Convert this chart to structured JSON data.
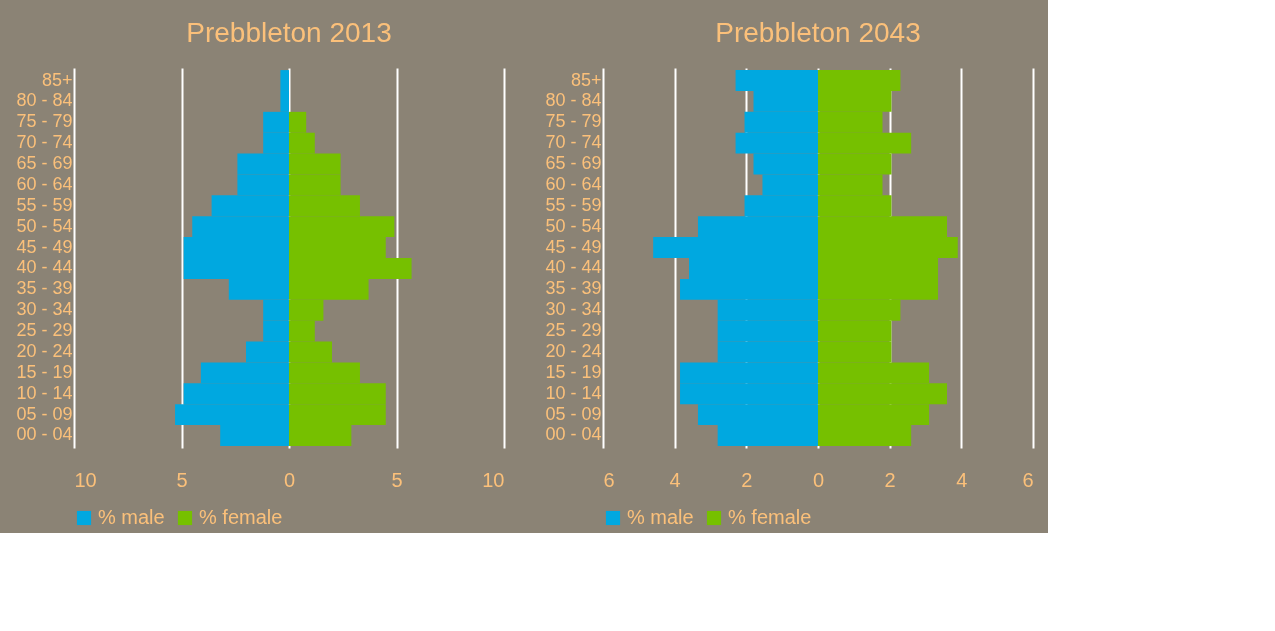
{
  "chart_data": [
    {
      "type": "bar",
      "orientation": "horizontal",
      "stacked": true,
      "title": "Prebbleton 2013",
      "categories": [
        "85+",
        "80 - 84",
        "75 - 79",
        "70 - 74",
        "65 - 69",
        "60 - 64",
        "55 - 59",
        "50 - 54",
        "45 - 49",
        "40 - 44",
        "35 - 39",
        "30 - 34",
        "25 - 29",
        "20 - 24",
        "15 - 19",
        "10 - 14",
        "05 - 09",
        "00 - 04"
      ],
      "series": [
        {
          "name": "% male",
          "color": "#00a8e0",
          "values": [
            -0.4,
            -0.4,
            -1.2,
            -1.2,
            -2.4,
            -2.4,
            -3.6,
            -4.5,
            -4.9,
            -4.9,
            -2.8,
            -1.2,
            -1.2,
            -2.0,
            -4.1,
            -4.9,
            -5.3,
            -3.2
          ]
        },
        {
          "name": "% female",
          "color": "#76c000",
          "values": [
            0,
            0,
            0.8,
            1.2,
            2.4,
            2.4,
            3.3,
            4.9,
            4.5,
            5.7,
            3.7,
            1.6,
            1.2,
            2.0,
            3.3,
            4.5,
            4.5,
            2.9
          ]
        }
      ],
      "xlim": [
        -10,
        10
      ],
      "xticks": [
        {
          "value": -10,
          "label": "10"
        },
        {
          "value": -5,
          "label": "5"
        },
        0,
        5,
        10
      ],
      "grid": "x",
      "legend": "bottom"
    },
    {
      "type": "bar",
      "orientation": "horizontal",
      "stacked": true,
      "title": "Prebbleton 2043",
      "categories": [
        "85+",
        "80 - 84",
        "75 - 79",
        "70 - 74",
        "65 - 69",
        "60 - 64",
        "55 - 59",
        "50 - 54",
        "45 - 49",
        "40 - 44",
        "35 - 39",
        "30 - 34",
        "25 - 29",
        "20 - 24",
        "15 - 19",
        "10 - 14",
        "05 - 09",
        "00 - 04"
      ],
      "series": [
        {
          "name": "% male",
          "color": "#00a8e0",
          "values": [
            -2.3,
            -1.8,
            -2.05,
            -2.3,
            -1.8,
            -1.55,
            -2.05,
            -3.35,
            -4.6,
            -3.6,
            -3.85,
            -2.8,
            -2.8,
            -2.8,
            -3.85,
            -3.85,
            -3.35,
            -2.8
          ]
        },
        {
          "name": "% female",
          "color": "#76c000",
          "values": [
            2.3,
            2.05,
            1.8,
            2.6,
            2.05,
            1.8,
            2.05,
            3.6,
            3.9,
            3.35,
            3.35,
            2.3,
            2.05,
            2.05,
            3.1,
            3.6,
            3.1,
            2.6
          ]
        }
      ],
      "xlim": [
        -6,
        6
      ],
      "xticks": [
        {
          "value": -6,
          "label": "6"
        },
        {
          "value": -4,
          "label": "4"
        },
        {
          "value": -2,
          "label": "2"
        },
        0,
        2,
        4,
        6
      ],
      "grid": "x",
      "legend": "bottom"
    }
  ]
}
